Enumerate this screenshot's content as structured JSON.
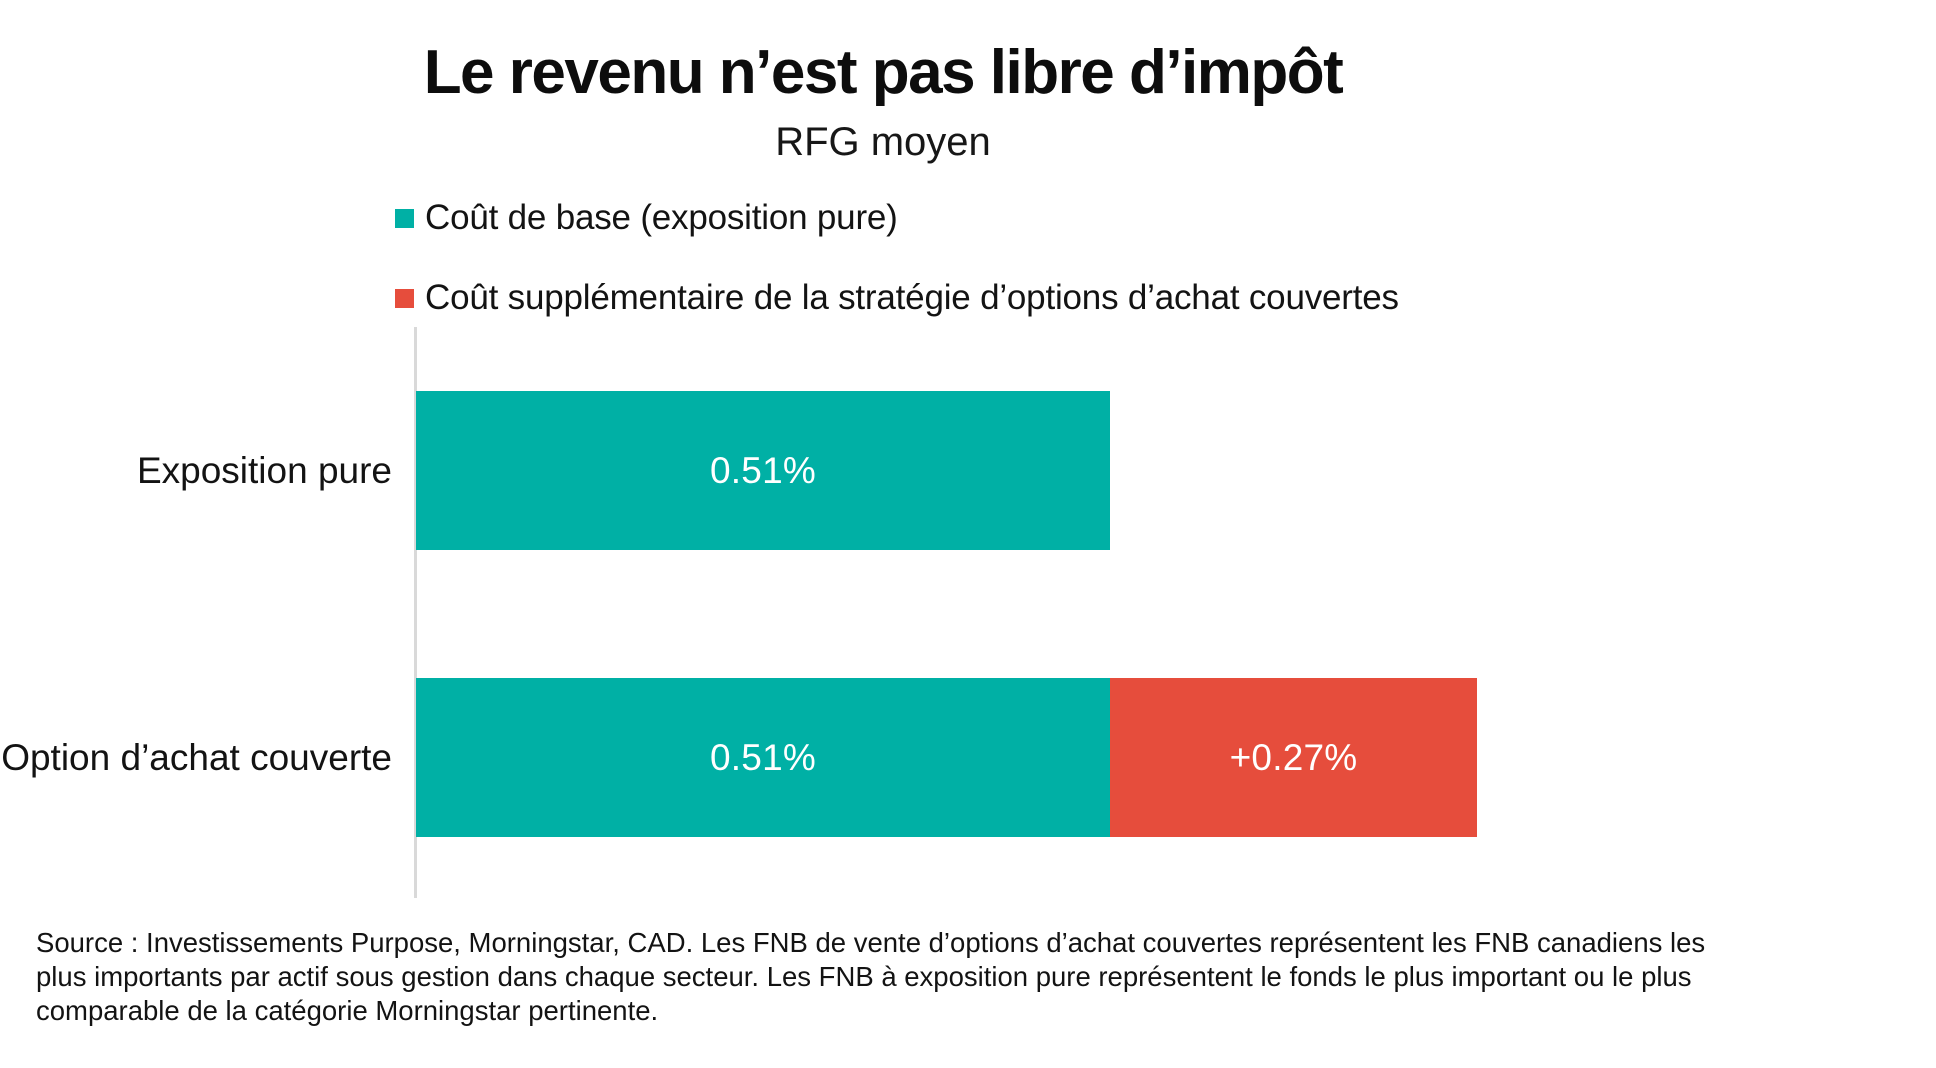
{
  "chart_data": {
    "type": "bar",
    "orientation": "horizontal",
    "stacked": true,
    "title": "Le revenu n’est pas libre d’impôt",
    "subtitle": "RFG moyen",
    "categories": [
      "Exposition pure",
      "Option d’achat couverte"
    ],
    "series": [
      {
        "name": "Coût de base (exposition pure)",
        "color": "#00B0A5",
        "values": [
          0.51,
          0.51
        ],
        "labels": [
          "0.51%",
          "0.51%"
        ]
      },
      {
        "name": "Coût supplémentaire de la stratégie d’options d’achat couvertes",
        "color": "#E64D3C",
        "values": [
          0,
          0.27
        ],
        "labels": [
          "",
          "+0.27%"
        ]
      }
    ],
    "value_unit": "%",
    "xlim": [
      0,
      0.78
    ],
    "grid": false,
    "legend_position": "top-left",
    "legend_marker": "square",
    "axis_color": "#D9D9D9"
  },
  "source": {
    "lines": [
      "Source : Investissements Purpose, Morningstar, CAD. Les FNB de vente d’options d’achat couvertes représentent les FNB canadiens les",
      "plus importants par actif sous gestion dans chaque secteur. Les FNB à exposition pure représentent le fonds le plus important ou le plus",
      "comparable de la catégorie Morningstar pertinente."
    ]
  }
}
